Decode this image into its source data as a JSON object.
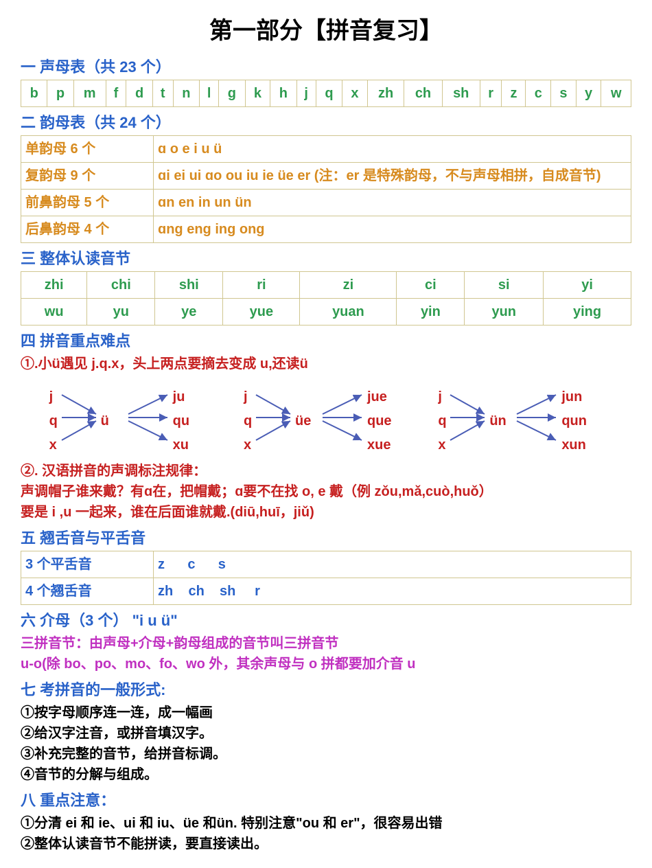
{
  "title": "第一部分【拼音复习】",
  "s1": {
    "header": "一  声母表（共 23 个）",
    "cells": [
      "b",
      "p",
      "m",
      "f",
      "d",
      "t",
      "n",
      "l",
      "g",
      "k",
      "h",
      "j",
      "q",
      "x",
      "zh",
      "ch",
      "sh",
      "r",
      "z",
      "c",
      "s",
      "y",
      "w"
    ]
  },
  "s2": {
    "header": "二  韵母表（共 24 个）",
    "rows": [
      {
        "label": "单韵母 6 个",
        "content": "ɑ   o   e   i   u   ü"
      },
      {
        "label": "复韵母 9 个",
        "content": "ɑi   ei   ui   ɑo   ou   iu   ie   üe   er (注：er 是特殊韵母，不与声母相拼，自成音节)"
      },
      {
        "label": "前鼻韵母 5 个",
        "content": "ɑn   en   in   un   ün"
      },
      {
        "label": "后鼻韵母 4 个",
        "content": "ɑng   eng   ing   ong"
      }
    ]
  },
  "s3": {
    "header": "三  整体认读音节",
    "row1": [
      "zhi",
      "chi",
      "shi",
      "ri",
      "zi",
      "ci",
      "si",
      "yi"
    ],
    "row2": [
      "wu",
      "yu",
      "ye",
      "yue",
      "yuan",
      "yin",
      "yun",
      "ying"
    ]
  },
  "s4": {
    "header": "四  拼音重点难点",
    "rule1": "①.小ü遇见 j.q.x，头上两点要摘去变成 u,还读ü",
    "diagrams": [
      {
        "left": [
          "j",
          "q",
          "x"
        ],
        "center": "ü",
        "right": [
          "ju",
          "qu",
          "xu"
        ]
      },
      {
        "left": [
          "j",
          "q",
          "x"
        ],
        "center": "üe",
        "right": [
          "jue",
          "que",
          "xue"
        ]
      },
      {
        "left": [
          "j",
          "q",
          "x"
        ],
        "center": "ün",
        "right": [
          "jun",
          "qun",
          "xun"
        ]
      }
    ],
    "rule2": "②. 汉语拼音的声调标注规律：",
    "rule2a": "声调帽子谁来戴？有ɑ在，把帽戴；ɑ要不在找 o, e 戴（例  zǒu,mǎ,cuò,huǒ）",
    "rule2b": "要是  i ,u 一起来，谁在后面谁就戴.(diū,huī，jiǔ)"
  },
  "s5": {
    "header": "五  翘舌音与平舌音",
    "rows": [
      {
        "label": "3 个平舌音",
        "content": "z      c      s"
      },
      {
        "label": "4 个翘舌音",
        "content": "zh    ch    sh     r"
      }
    ]
  },
  "s6": {
    "header": "六  介母（3 个）   \"i   u   ü\"",
    "line1": "三拼音节：由声母+介母+韵母组成的音节叫三拼音节",
    "line2": "u-o(除 bo、po、mo、fo、wo 外，其余声母与 o 拼都要加介音 u"
  },
  "s7": {
    "header": "七  考拼音的一般形式:",
    "items": [
      "①按字母顺序连一连，成一幅画",
      "②给汉字注音，或拼音填汉字。",
      "③补充完整的音节，给拼音标调。",
      "④音节的分解与组成。"
    ]
  },
  "s8": {
    "header": "八  重点注意：",
    "items": [
      "①分清 ei 和 ie、ui 和 iu、üe 和ün.  特别注意\"ou 和 er\"，很容易出错",
      "②整体认读音节不能拼读，要直接读出。"
    ]
  },
  "colors": {
    "blue": "#2962c9",
    "green": "#2e9b4f",
    "orange": "#d78b1f",
    "red": "#c62020",
    "purple": "#c030c0",
    "arrow": "#4a5db5",
    "border": "#d0c690"
  }
}
